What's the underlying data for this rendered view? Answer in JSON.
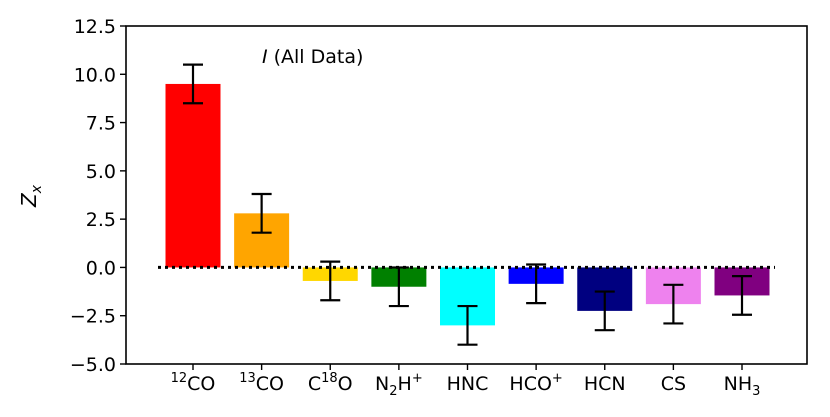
{
  "chart_data": {
    "type": "bar",
    "annotation": {
      "italic": "I",
      "text": "(All Data)"
    },
    "ylabel": {
      "base": "Z",
      "sub": "x"
    },
    "ylim": [
      -5.0,
      12.5
    ],
    "yticks": [
      "−5.0",
      "−2.5",
      "0.0",
      "2.5",
      "5.0",
      "7.5",
      "10.0",
      "12.5"
    ],
    "ytick_values": [
      -5.0,
      -2.5,
      0.0,
      2.5,
      5.0,
      7.5,
      10.0,
      12.5
    ],
    "grid": false,
    "zero_line": "dotted",
    "categories": [
      {
        "sup": "12",
        "base": "CO",
        "sub": "",
        "sup2": "",
        "value": 9.5,
        "err": 1.0,
        "color": "#ff0000"
      },
      {
        "sup": "13",
        "base": "CO",
        "sub": "",
        "sup2": "",
        "value": 2.8,
        "err": 1.0,
        "color": "#ffa500"
      },
      {
        "pre": "C",
        "sup": "18",
        "base": "O",
        "sub": "",
        "sup2": "",
        "value": -0.7,
        "err": 1.0,
        "color": "#ffd700"
      },
      {
        "pre": "N",
        "sup": "",
        "base": "",
        "sub": "2",
        "post": "H",
        "sup2": "+",
        "value": -1.0,
        "err": 1.0,
        "color": "#008000"
      },
      {
        "base": "HNC",
        "value": -3.0,
        "err": 1.0,
        "color": "#00ffff"
      },
      {
        "base": "HCO",
        "sup2": "+",
        "value": -0.85,
        "err": 1.0,
        "color": "#0000ff"
      },
      {
        "base": "HCN",
        "value": -2.25,
        "err": 1.0,
        "color": "#000080"
      },
      {
        "base": "CS",
        "value": -1.9,
        "err": 1.0,
        "color": "#ee82ee"
      },
      {
        "base": "NH",
        "sub": "3",
        "value": -1.45,
        "err": 1.0,
        "color": "#800080"
      }
    ]
  }
}
